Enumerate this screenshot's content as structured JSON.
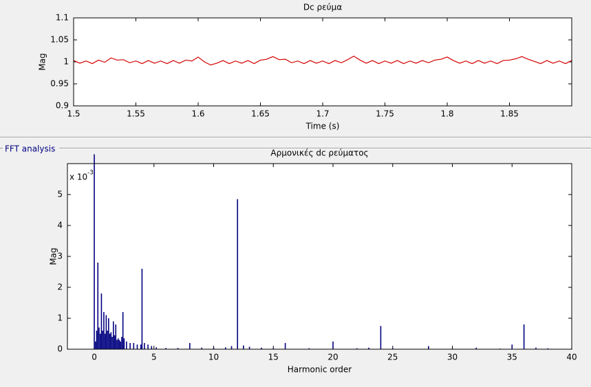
{
  "panel_title": "FFT analysis",
  "chart_data": [
    {
      "type": "line",
      "title": "Dc ρεύμα",
      "xlabel": "Time (s)",
      "ylabel": "Mag",
      "x": [
        1.5,
        1.505,
        1.51,
        1.515,
        1.52,
        1.525,
        1.53,
        1.535,
        1.54,
        1.545,
        1.55,
        1.555,
        1.56,
        1.565,
        1.57,
        1.575,
        1.58,
        1.585,
        1.59,
        1.595,
        1.6,
        1.605,
        1.61,
        1.615,
        1.62,
        1.625,
        1.63,
        1.635,
        1.64,
        1.645,
        1.65,
        1.655,
        1.66,
        1.665,
        1.67,
        1.675,
        1.68,
        1.685,
        1.69,
        1.695,
        1.7,
        1.705,
        1.71,
        1.715,
        1.72,
        1.725,
        1.73,
        1.735,
        1.74,
        1.745,
        1.75,
        1.755,
        1.76,
        1.765,
        1.77,
        1.775,
        1.78,
        1.785,
        1.79,
        1.795,
        1.8,
        1.805,
        1.81,
        1.815,
        1.82,
        1.825,
        1.83,
        1.835,
        1.84,
        1.845,
        1.85,
        1.855,
        1.86,
        1.865,
        1.87,
        1.875,
        1.88,
        1.885,
        1.89,
        1.895,
        1.9
      ],
      "series": [
        {
          "color": "#d40000",
          "values": [
            1.003,
            0.997,
            1.002,
            0.996,
            1.004,
            0.999,
            1.009,
            1.004,
            1.005,
            0.998,
            1.002,
            0.996,
            1.003,
            0.997,
            1.002,
            0.996,
            1.003,
            0.997,
            1.004,
            1.002,
            1.011,
            1.0,
            0.993,
            0.997,
            1.003,
            0.996,
            1.002,
            0.997,
            1.003,
            0.996,
            1.004,
            1.006,
            1.012,
            1.005,
            1.006,
            0.998,
            1.002,
            0.996,
            1.003,
            0.997,
            1.002,
            0.996,
            1.003,
            0.998,
            1.005,
            1.013,
            1.004,
            0.997,
            1.003,
            0.996,
            1.002,
            0.997,
            1.003,
            0.996,
            1.002,
            0.997,
            1.003,
            0.998,
            1.004,
            1.006,
            1.011,
            1.003,
            0.997,
            1.002,
            0.996,
            1.003,
            0.997,
            1.002,
            0.996,
            1.003,
            1.004,
            1.007,
            1.012,
            1.006,
            1.001,
            0.996,
            1.003,
            0.997,
            1.002,
            0.996,
            1.003
          ]
        }
      ],
      "xlim": [
        1.5,
        1.9
      ],
      "ylim": [
        0.9,
        1.1
      ],
      "xticks": [
        1.5,
        1.55,
        1.6,
        1.65,
        1.7,
        1.75,
        1.8,
        1.85
      ],
      "yticks": [
        0.9,
        0.95,
        1,
        1.05,
        1.1
      ]
    },
    {
      "type": "bar",
      "title": "Αρμονικές dc ρεύματος",
      "xlabel": "Harmonic order",
      "ylabel": "Mag",
      "y_multiplier": {
        "base": "x 10",
        "exponent": "-3"
      },
      "x": [
        0,
        0.1,
        0.2,
        0.3,
        0.4,
        0.5,
        0.6,
        0.7,
        0.8,
        0.9,
        1.0,
        1.1,
        1.2,
        1.3,
        1.4,
        1.5,
        1.6,
        1.7,
        1.8,
        1.9,
        2.0,
        2.1,
        2.2,
        2.3,
        2.4,
        2.5,
        2.7,
        3.0,
        3.3,
        3.6,
        3.9,
        4.0,
        4.2,
        4.5,
        4.8,
        5.2,
        6,
        7,
        8,
        9,
        10,
        11,
        11.5,
        12,
        12.5,
        13,
        14,
        15,
        16,
        18,
        20,
        22,
        23,
        24,
        25,
        28,
        30,
        32,
        34,
        35,
        36,
        37,
        38,
        40
      ],
      "values": [
        6.3,
        0.25,
        0.6,
        2.8,
        0.7,
        0.5,
        1.8,
        0.6,
        1.2,
        0.5,
        1.1,
        0.6,
        1.0,
        0.5,
        0.55,
        0.4,
        0.9,
        0.45,
        0.8,
        0.3,
        0.35,
        0.3,
        0.25,
        0.4,
        1.2,
        0.35,
        0.25,
        0.2,
        0.2,
        0.15,
        0.15,
        2.6,
        0.2,
        0.15,
        0.1,
        0.06,
        0.04,
        0.04,
        0.2,
        0.05,
        0.05,
        0.06,
        0.1,
        4.85,
        0.12,
        0.08,
        0.05,
        0.03,
        0.2,
        0.03,
        0.25,
        0.03,
        0.05,
        0.75,
        0.03,
        0.1,
        0.02,
        0.05,
        0.02,
        0.15,
        0.8,
        0.05,
        0.03,
        0.02
      ],
      "color": "#000080",
      "xlim": [
        -2.25,
        40
      ],
      "ylim": [
        0,
        6
      ],
      "xticks": [
        0,
        5,
        10,
        15,
        20,
        25,
        30,
        35,
        40
      ],
      "yticks": [
        0,
        1,
        2,
        3,
        4,
        5
      ]
    }
  ]
}
